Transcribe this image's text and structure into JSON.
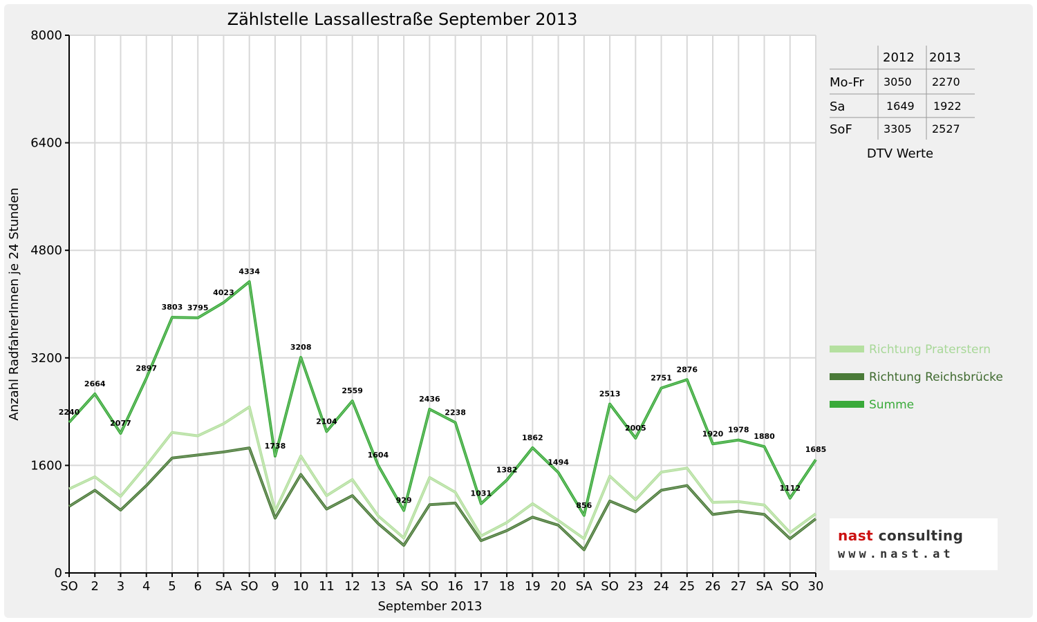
{
  "chart_data": {
    "type": "line",
    "title": "Zählstelle Lassallestraße September 2013",
    "xlabel": "September 2013",
    "ylabel": "Anzahl RadfahrerInnen je 24 Stunden",
    "ylim": [
      0,
      8000
    ],
    "yticks": [
      "0",
      "1600",
      "3200",
      "4800",
      "6400",
      "8000"
    ],
    "categories": [
      "SO",
      "2",
      "3",
      "4",
      "5",
      "6",
      "SA",
      "SO",
      "9",
      "10",
      "11",
      "12",
      "13",
      "SA",
      "SO",
      "16",
      "17",
      "18",
      "19",
      "20",
      "SA",
      "SO",
      "23",
      "24",
      "25",
      "26",
      "27",
      "SA",
      "SO",
      "30"
    ],
    "highlight_categories": [
      "SO"
    ],
    "highlight_color": "#e00000",
    "grid": true,
    "series": [
      {
        "name": "Richtung Praterstern",
        "color": "#b5e0a0",
        "values": [
          1250,
          1430,
          1140,
          1600,
          2090,
          2040,
          2220,
          2470,
          920,
          1740,
          1150,
          1390,
          850,
          520,
          1420,
          1200,
          550,
          750,
          1030,
          780,
          510,
          1440,
          1090,
          1500,
          1560,
          1050,
          1060,
          1010,
          600,
          880
        ]
      },
      {
        "name": "Richtung Reichsbrücke",
        "color": "#4a7a38",
        "values": [
          990,
          1230,
          935,
          1300,
          1710,
          1755,
          1800,
          1860,
          815,
          1465,
          950,
          1150,
          735,
          410,
          1015,
          1040,
          480,
          630,
          830,
          710,
          345,
          1070,
          910,
          1230,
          1300,
          870,
          920,
          870,
          510,
          805
        ]
      },
      {
        "name": "Summe",
        "color": "#3aaa3a",
        "values": [
          2240,
          2664,
          2077,
          2897,
          3803,
          3795,
          4023,
          4334,
          1738,
          3208,
          2104,
          2559,
          1604,
          929,
          2436,
          2238,
          1031,
          1382,
          1862,
          1494,
          856,
          2513,
          2005,
          2751,
          2876,
          1920,
          1978,
          1880,
          1112,
          1685
        ]
      }
    ],
    "data_labels": [
      "2240",
      "2664",
      "2077",
      "2897",
      "3803",
      "3795",
      "4023",
      "4334",
      "1738",
      "3208",
      "2104",
      "2559",
      "1604",
      "929",
      "2436",
      "2238",
      "1031",
      "1382",
      "1862",
      "1494",
      "856",
      "2513",
      "2005",
      "2751",
      "2876",
      "1920",
      "1978",
      "1880",
      "1112",
      "1685"
    ]
  },
  "dtv_table": {
    "years": [
      "2012",
      "2013"
    ],
    "rows": [
      {
        "label": "Mo-Fr",
        "v2012": "3050",
        "v2013": "2270"
      },
      {
        "label": "Sa",
        "v2012": "1649",
        "v2013": "1922"
      },
      {
        "label": "SoF",
        "v2012": "3305",
        "v2013": "2527"
      }
    ],
    "caption": "DTV Werte"
  },
  "logo": {
    "word1": "nast",
    "word2": "consulting",
    "word1_color": "#cc1111",
    "word2_color": "#333333",
    "url": "www.nast.at"
  }
}
